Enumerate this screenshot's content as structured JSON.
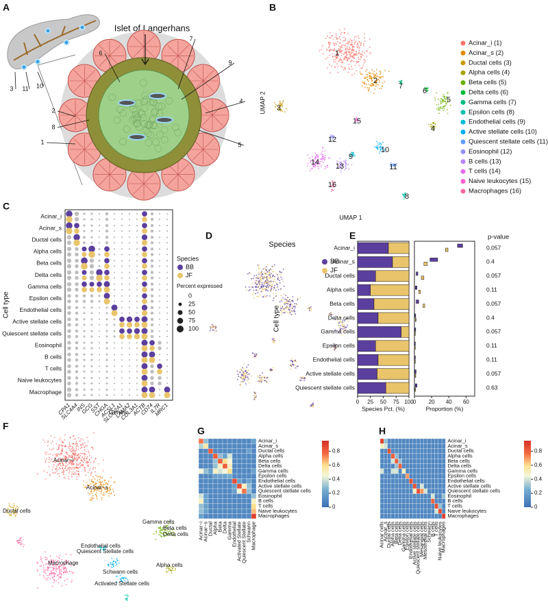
{
  "diagram": {
    "label": "A",
    "title": "Islet of Langerhans",
    "callouts": [
      "1",
      "2",
      "3",
      "4",
      "5",
      "6",
      "7",
      "8",
      "9",
      "10",
      "11"
    ]
  },
  "chart_data": [
    {
      "label": "B",
      "type": "scatter",
      "xlabel": "UMAP 1",
      "ylabel": "UMAP 2",
      "series": [
        {
          "name": "Acinar_i (1)",
          "label": "1",
          "color": "#F8766D"
        },
        {
          "name": "Acinar_s (2)",
          "label": "2",
          "color": "#E58700"
        },
        {
          "name": "Ductal cells (3)",
          "label": "3",
          "color": "#C99800"
        },
        {
          "name": "Alpha cells (4)",
          "label": "4",
          "color": "#A3A500"
        },
        {
          "name": "Beta cells (5)",
          "label": "5",
          "color": "#6BB100"
        },
        {
          "name": "Delta cells (6)",
          "label": "6",
          "color": "#00BA38"
        },
        {
          "name": "Gamma cells (7)",
          "label": "7",
          "color": "#00BF7D"
        },
        {
          "name": "Epsilon cells (8)",
          "label": "8",
          "color": "#00C0AF"
        },
        {
          "name": "Endothelial cells (9)",
          "label": "9",
          "color": "#00BCD8"
        },
        {
          "name": "Active stellate cells (10)",
          "label": "10",
          "color": "#00B0F6"
        },
        {
          "name": "Quiescent stellate cells (11)",
          "label": "11",
          "color": "#619CFF"
        },
        {
          "name": "Eosinophil (12)",
          "label": "12",
          "color": "#9590FF"
        },
        {
          "name": "B cells (13)",
          "label": "13",
          "color": "#B983FF"
        },
        {
          "name": "T cells (14)",
          "label": "14",
          "color": "#E76BF3"
        },
        {
          "name": "Naive leukocytes (15)",
          "label": "15",
          "color": "#FD61D1"
        },
        {
          "name": "Macrophages (16)",
          "label": "16",
          "color": "#FF67A4"
        }
      ]
    },
    {
      "label": "C",
      "type": "dot",
      "xlabel": "Genes",
      "ylabel": "Cell type",
      "legend_title": "Species",
      "size_title": "Percent expressed",
      "size_ticks": [
        0,
        25,
        50,
        75,
        100
      ],
      "low_color": "#bdbdbd",
      "categories": [
        "Acinar_i",
        "Acinar_s",
        "Ductal cells",
        "Alpha cells",
        "Beta cells",
        "Delta cells",
        "Gamma cells",
        "Epsilon cells",
        "Endothelial cells",
        "Active stellate cells",
        "Quiescent stellate cells",
        "Eosinophil",
        "B cells",
        "T cells",
        "Naive leukocytes",
        "Macrophage"
      ],
      "genes": [
        "CPA1",
        "SLC4A4",
        "INS",
        "GCG",
        "SST",
        "CHGA",
        "ACSL1",
        "SLCO2A1",
        "LAMA2",
        "COL3A1",
        "ACTB",
        "CD74",
        "IL7R",
        "MRC1"
      ],
      "series": [
        {
          "name": "BB",
          "color": "#5b3f9e"
        },
        {
          "name": "JF",
          "color": "#e9c46a"
        }
      ],
      "values": [
        [
          90,
          40,
          10,
          10,
          5,
          20,
          5,
          5,
          5,
          5,
          60,
          20,
          5,
          5
        ],
        [
          90,
          60,
          10,
          10,
          5,
          20,
          5,
          5,
          5,
          5,
          60,
          20,
          5,
          5
        ],
        [
          40,
          90,
          15,
          10,
          5,
          20,
          5,
          5,
          5,
          5,
          70,
          20,
          5,
          5
        ],
        [
          40,
          30,
          50,
          95,
          10,
          60,
          5,
          5,
          5,
          5,
          60,
          20,
          5,
          5
        ],
        [
          40,
          30,
          95,
          40,
          10,
          60,
          5,
          5,
          5,
          5,
          60,
          20,
          5,
          5
        ],
        [
          40,
          30,
          50,
          40,
          90,
          60,
          5,
          5,
          5,
          5,
          60,
          20,
          5,
          5
        ],
        [
          40,
          30,
          60,
          50,
          60,
          80,
          5,
          5,
          5,
          5,
          60,
          20,
          5,
          5
        ],
        [
          30,
          20,
          20,
          20,
          10,
          80,
          5,
          5,
          5,
          5,
          60,
          20,
          5,
          5
        ],
        [
          30,
          20,
          10,
          10,
          5,
          10,
          80,
          5,
          5,
          5,
          70,
          20,
          5,
          5
        ],
        [
          30,
          20,
          10,
          10,
          5,
          10,
          10,
          60,
          70,
          60,
          80,
          20,
          5,
          5
        ],
        [
          30,
          20,
          10,
          10,
          5,
          10,
          10,
          60,
          60,
          70,
          80,
          20,
          5,
          5
        ],
        [
          30,
          20,
          10,
          10,
          5,
          10,
          5,
          5,
          5,
          5,
          80,
          60,
          30,
          5
        ],
        [
          30,
          20,
          10,
          10,
          5,
          10,
          5,
          5,
          5,
          5,
          80,
          80,
          5,
          5
        ],
        [
          30,
          20,
          10,
          10,
          5,
          10,
          5,
          5,
          5,
          5,
          80,
          30,
          60,
          5
        ],
        [
          30,
          20,
          10,
          10,
          5,
          10,
          5,
          5,
          5,
          5,
          80,
          30,
          30,
          5
        ],
        [
          40,
          20,
          10,
          10,
          5,
          10,
          5,
          5,
          5,
          5,
          80,
          80,
          5,
          80
        ]
      ]
    },
    {
      "label": "D",
      "type": "scatter",
      "title": "Species",
      "series": [
        {
          "name": "BB",
          "color": "#5b3f9e"
        },
        {
          "name": "JF",
          "color": "#e9c46a"
        }
      ]
    },
    {
      "label": "E",
      "type": "bar",
      "orientation": "horizontal",
      "stacked": true,
      "ylabel": "Cell type",
      "xlabel": "Species Pct. (%)",
      "categories": [
        "Acinar_i",
        "Acinar_s",
        "Ductal cells",
        "Alpha cells",
        "Beta cells",
        "Delta cells",
        "Gamma cells",
        "Epsilon cells",
        "Endothelial cells",
        "Active stellate cells",
        "Quiescent stellate cells"
      ],
      "xlim": [
        0,
        100
      ],
      "xticks": [
        0,
        25,
        50,
        75,
        100
      ],
      "series": [
        {
          "color": "#5b3f9e",
          "values": [
            60,
            68,
            35,
            25,
            32,
            40,
            85,
            35,
            40,
            38,
            55
          ]
        },
        {
          "color": "#e9c46a",
          "values": [
            40,
            32,
            65,
            75,
            68,
            60,
            15,
            65,
            60,
            62,
            45
          ]
        }
      ]
    },
    {
      "type": "box",
      "orientation": "horizontal",
      "xlabel": "Proportion (%)",
      "xlim": [
        0,
        70
      ],
      "xticks": [
        0,
        20,
        40,
        60
      ],
      "series": [
        {
          "color": "#5b3f9e",
          "low": [
            50,
            18,
            2,
            1,
            2,
            0.5,
            0.5,
            0.3,
            0.3,
            0.5,
            1
          ],
          "high": [
            56,
            27,
            4,
            3,
            5,
            1.5,
            1.5,
            1,
            1,
            2,
            3
          ]
        },
        {
          "color": "#e9c46a",
          "low": [
            36,
            11,
            8,
            5,
            10,
            1,
            0.3,
            0.2,
            0.3,
            0.8,
            0.5
          ],
          "high": [
            39,
            15,
            11,
            7,
            12,
            2,
            0.8,
            0.6,
            0.8,
            1.5,
            1.2
          ]
        }
      ],
      "pvalue_title": "p-value",
      "pvalues": [
        0.057,
        0.4,
        0.057,
        0.11,
        0.057,
        0.4,
        0.057,
        0.11,
        0.11,
        0.057,
        0.63
      ]
    },
    {
      "label": "F",
      "type": "scatter",
      "labels": [
        "Acinar~i",
        "Acinar~s",
        "Ductal cells",
        "Gamma cells",
        "Beta cells",
        "Delta cells",
        "Endothelial cells",
        "Quiescent Stellate cells",
        "Alpha cells",
        "Macrophage",
        "Schwann cells",
        "Activated Stellate cells"
      ]
    },
    {
      "label": "G",
      "type": "heatmap",
      "clim": [
        0,
        0.95
      ],
      "cticks": [
        0,
        0.2,
        0.4,
        0.6,
        0.8
      ],
      "rows": [
        "Acinar_i",
        "Acinar_s",
        "Ductal cells",
        "Alpha cells",
        "Beta cells",
        "Delta cells",
        "Gamma cells",
        "Epsilon cells",
        "Endothelial cells",
        "Active stellate cells",
        "Quiescent stellate cells",
        "Eosinophil",
        "B cells",
        "T cells",
        "Naive leukocytes",
        "Macrophages"
      ],
      "columns": [
        "Acinar~i",
        "Acinar~s",
        "Ductal",
        "Alpha",
        "Beta",
        "Delta",
        "Gamma",
        "Endothelial",
        "Activated Stellate",
        "Quiescent Stellate",
        "Schwann",
        "Macrophage"
      ],
      "values": [
        [
          0.75,
          0.3,
          0.1,
          0.1,
          0.1,
          0.1,
          0.1,
          0.1,
          0.1,
          0.1,
          0.1,
          0.2
        ],
        [
          0.35,
          0.55,
          0.1,
          0.1,
          0.1,
          0.1,
          0.1,
          0.1,
          0.1,
          0.1,
          0.1,
          0.1
        ],
        [
          0.1,
          0.1,
          0.8,
          0.1,
          0.1,
          0.1,
          0.1,
          0.1,
          0.1,
          0.1,
          0.2,
          0.1
        ],
        [
          0.1,
          0.1,
          0.1,
          0.8,
          0.3,
          0.2,
          0.4,
          0.1,
          0.1,
          0.1,
          0.1,
          0.1
        ],
        [
          0.1,
          0.1,
          0.1,
          0.3,
          0.8,
          0.6,
          0.45,
          0.1,
          0.1,
          0.1,
          0.1,
          0.1
        ],
        [
          0.1,
          0.1,
          0.1,
          0.3,
          0.5,
          0.8,
          0.5,
          0.1,
          0.1,
          0.1,
          0.1,
          0.1
        ],
        [
          0.45,
          0.3,
          0.2,
          0.5,
          0.4,
          0.45,
          0.6,
          0.1,
          0.1,
          0.1,
          0.1,
          0.2
        ],
        [
          0.1,
          0.1,
          0.1,
          0.2,
          0.2,
          0.2,
          0.25,
          0.1,
          0.1,
          0.1,
          0.1,
          0.1
        ],
        [
          0.1,
          0.1,
          0.1,
          0.1,
          0.1,
          0.1,
          0.1,
          0.85,
          0.2,
          0.1,
          0.2,
          0.1
        ],
        [
          0.1,
          0.1,
          0.1,
          0.1,
          0.1,
          0.1,
          0.1,
          0.2,
          0.85,
          0.5,
          0.3,
          0.1
        ],
        [
          0.1,
          0.1,
          0.1,
          0.1,
          0.1,
          0.1,
          0.1,
          0.2,
          0.45,
          0.75,
          0.3,
          0.1
        ],
        [
          0.4,
          0.2,
          0.1,
          0.1,
          0.1,
          0.1,
          0.1,
          0.1,
          0.1,
          0.1,
          0.1,
          0.3
        ],
        [
          0.5,
          0.2,
          0.1,
          0.1,
          0.1,
          0.1,
          0.1,
          0.1,
          0.1,
          0.1,
          0.1,
          0.5
        ],
        [
          0.3,
          0.2,
          0.1,
          0.1,
          0.1,
          0.1,
          0.1,
          0.1,
          0.1,
          0.1,
          0.1,
          0.6
        ],
        [
          0.3,
          0.2,
          0.1,
          0.1,
          0.1,
          0.1,
          0.1,
          0.1,
          0.1,
          0.1,
          0.1,
          0.65
        ],
        [
          0.2,
          0.1,
          0.1,
          0.1,
          0.1,
          0.1,
          0.1,
          0.1,
          0.1,
          0.1,
          0.1,
          0.9
        ]
      ]
    },
    {
      "label": "H",
      "type": "heatmap",
      "clim": [
        0,
        0.95
      ],
      "cticks": [
        0,
        0.2,
        0.4,
        0.6,
        0.8
      ],
      "rows": [
        "Acinar_i",
        "Acinar_s",
        "Ductal cells",
        "Alpha cells",
        "Beta cells",
        "Delta cells",
        "Gamma cells",
        "Epsilon cells",
        "Endothelial cells",
        "Active stellate cells",
        "Quiescent stellate cells",
        "Eosinophil",
        "B cells",
        "T cells",
        "Naive leukocytes",
        "Macrophages"
      ],
      "columns": [
        "Acinar cells",
        "Acinar_s",
        "Ductal cells",
        "Alpha cells",
        "Beta cells",
        "Delta cells",
        "Gamma cells",
        "Epsilon cells",
        "Endothelial cells",
        "Active stellate cells",
        "Quiescent stellate cells",
        "Mesangial cells",
        "Mesothelial cells",
        "Schwann",
        "B cells",
        "T cells",
        "Naive leukocytes",
        "Macrophages"
      ],
      "values": [
        [
          0.9,
          0.3,
          0.1,
          0.1,
          0.1,
          0.1,
          0.1,
          0.1,
          0.1,
          0.1,
          0.1,
          0.1,
          0.1,
          0.1,
          0.1,
          0.1,
          0.1,
          0.1
        ],
        [
          0.5,
          0.4,
          0.1,
          0.1,
          0.1,
          0.1,
          0.1,
          0.1,
          0.1,
          0.1,
          0.1,
          0.1,
          0.1,
          0.1,
          0.1,
          0.1,
          0.1,
          0.1
        ],
        [
          0.1,
          0.1,
          0.85,
          0.1,
          0.1,
          0.1,
          0.1,
          0.1,
          0.1,
          0.1,
          0.1,
          0.1,
          0.1,
          0.1,
          0.1,
          0.1,
          0.1,
          0.1
        ],
        [
          0.1,
          0.1,
          0.1,
          0.8,
          0.3,
          0.1,
          0.1,
          0.1,
          0.1,
          0.1,
          0.1,
          0.1,
          0.1,
          0.1,
          0.1,
          0.1,
          0.1,
          0.1
        ],
        [
          0.1,
          0.1,
          0.1,
          0.4,
          0.8,
          0.3,
          0.1,
          0.1,
          0.1,
          0.1,
          0.1,
          0.1,
          0.1,
          0.1,
          0.1,
          0.1,
          0.1,
          0.1
        ],
        [
          0.1,
          0.1,
          0.1,
          0.1,
          0.3,
          0.8,
          0.1,
          0.1,
          0.1,
          0.1,
          0.1,
          0.1,
          0.1,
          0.1,
          0.1,
          0.1,
          0.1,
          0.1
        ],
        [
          0.4,
          0.1,
          0.1,
          0.4,
          0.4,
          0.1,
          0.5,
          0.1,
          0.1,
          0.1,
          0.1,
          0.1,
          0.1,
          0.1,
          0.1,
          0.1,
          0.1,
          0.1
        ],
        [
          0.1,
          0.1,
          0.1,
          0.1,
          0.1,
          0.1,
          0.1,
          0.7,
          0.1,
          0.1,
          0.1,
          0.1,
          0.1,
          0.1,
          0.1,
          0.1,
          0.1,
          0.1
        ],
        [
          0.1,
          0.1,
          0.1,
          0.1,
          0.1,
          0.1,
          0.1,
          0.1,
          0.85,
          0.1,
          0.1,
          0.1,
          0.1,
          0.1,
          0.1,
          0.1,
          0.1,
          0.1
        ],
        [
          0.1,
          0.1,
          0.1,
          0.1,
          0.1,
          0.1,
          0.1,
          0.1,
          0.1,
          0.85,
          0.1,
          0.4,
          0.1,
          0.1,
          0.1,
          0.1,
          0.1,
          0.1
        ],
        [
          0.1,
          0.1,
          0.1,
          0.1,
          0.1,
          0.1,
          0.1,
          0.1,
          0.1,
          0.5,
          0.85,
          0.7,
          0.4,
          0.1,
          0.1,
          0.1,
          0.1,
          0.1
        ],
        [
          0.1,
          0.1,
          0.1,
          0.1,
          0.1,
          0.1,
          0.1,
          0.1,
          0.1,
          0.1,
          0.1,
          0.1,
          0.1,
          0.1,
          0.4,
          0.1,
          0.1,
          0.3
        ],
        [
          0.1,
          0.1,
          0.1,
          0.1,
          0.1,
          0.1,
          0.1,
          0.1,
          0.1,
          0.1,
          0.1,
          0.1,
          0.1,
          0.1,
          0.8,
          0.1,
          0.1,
          0.1
        ],
        [
          0.1,
          0.1,
          0.1,
          0.1,
          0.1,
          0.1,
          0.1,
          0.1,
          0.1,
          0.1,
          0.1,
          0.1,
          0.1,
          0.1,
          0.1,
          0.85,
          0.3,
          0.1
        ],
        [
          0.1,
          0.1,
          0.1,
          0.1,
          0.1,
          0.1,
          0.1,
          0.1,
          0.1,
          0.1,
          0.1,
          0.1,
          0.1,
          0.1,
          0.1,
          0.4,
          0.85,
          0.1
        ],
        [
          0.1,
          0.1,
          0.1,
          0.1,
          0.1,
          0.1,
          0.1,
          0.1,
          0.1,
          0.1,
          0.1,
          0.1,
          0.1,
          0.1,
          0.1,
          0.1,
          0.1,
          0.9
        ]
      ]
    }
  ]
}
